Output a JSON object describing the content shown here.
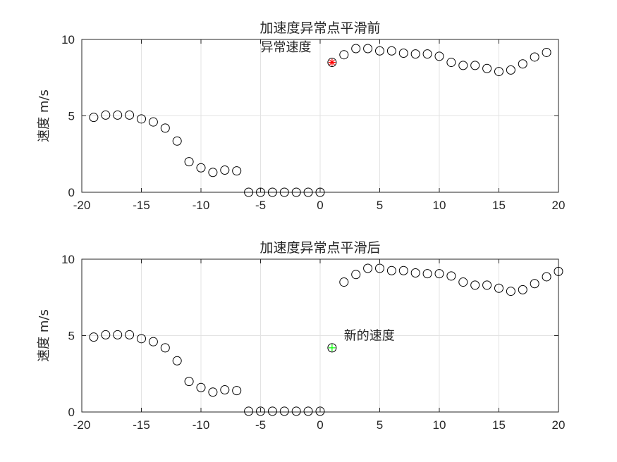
{
  "chart_data": [
    {
      "type": "scatter",
      "title": "加速度异常点平滑前",
      "xlabel": "",
      "ylabel": "速度  m/s",
      "xlim": [
        -20,
        20
      ],
      "ylim": [
        0,
        10
      ],
      "xticks": [
        "-20",
        "-15",
        "-10",
        "-5",
        "0",
        "5",
        "10",
        "15",
        "20"
      ],
      "yticks": [
        "0",
        "5",
        "10"
      ],
      "grid": true,
      "series": [
        {
          "x": [
            -19,
            -18,
            -17,
            -16,
            -15,
            -14,
            -13,
            -12,
            -11,
            -10,
            -9,
            -8,
            -7,
            -6,
            -5,
            -4,
            -3,
            -2,
            -1,
            0,
            1,
            2,
            3,
            4,
            5,
            6,
            7,
            8,
            9,
            10,
            11,
            12,
            13,
            14,
            15,
            16,
            17,
            18,
            19
          ],
          "y": [
            4.9,
            5.05,
            5.05,
            5.05,
            4.8,
            4.6,
            4.2,
            3.35,
            2.0,
            1.6,
            1.3,
            1.45,
            1.4,
            0.0,
            0.0,
            0.0,
            0.0,
            0.0,
            0.0,
            0.0,
            8.5,
            9.0,
            9.4,
            9.4,
            9.25,
            9.25,
            9.1,
            9.05,
            9.05,
            8.9,
            8.5,
            8.3,
            8.3,
            8.1,
            7.9,
            8.0,
            8.4,
            8.85,
            9.15
          ]
        }
      ],
      "highlight": {
        "x": 1,
        "y": 8.5,
        "color": "#ff0000",
        "marker": "*"
      },
      "annotation": {
        "text": "异常速度",
        "x": -5,
        "y": 9.5
      }
    },
    {
      "type": "scatter",
      "title": "加速度异常点平滑后",
      "xlabel": "",
      "ylabel": "速度  m/s",
      "xlim": [
        -20,
        20
      ],
      "ylim": [
        0,
        10
      ],
      "xticks": [
        "-20",
        "-15",
        "-10",
        "-5",
        "0",
        "5",
        "10",
        "15",
        "20"
      ],
      "yticks": [
        "0",
        "5",
        "10"
      ],
      "grid": true,
      "series": [
        {
          "x": [
            -19,
            -18,
            -17,
            -16,
            -15,
            -14,
            -13,
            -12,
            -11,
            -10,
            -9,
            -8,
            -7,
            -6,
            -5,
            -4,
            -3,
            -2,
            -1,
            0,
            1,
            2,
            3,
            4,
            5,
            6,
            7,
            8,
            9,
            10,
            11,
            12,
            13,
            14,
            15,
            16,
            17,
            18,
            19,
            20
          ],
          "y": [
            4.9,
            5.05,
            5.05,
            5.05,
            4.8,
            4.6,
            4.2,
            3.35,
            2.0,
            1.6,
            1.3,
            1.45,
            1.4,
            0.05,
            0.05,
            0.05,
            0.05,
            0.05,
            0.05,
            0.05,
            4.2,
            8.5,
            9.0,
            9.4,
            9.4,
            9.25,
            9.25,
            9.1,
            9.05,
            9.05,
            8.9,
            8.5,
            8.3,
            8.3,
            8.1,
            7.9,
            8.0,
            8.4,
            8.85,
            9.2
          ]
        }
      ],
      "highlight": {
        "x": 1,
        "y": 4.2,
        "color": "#00ff00",
        "marker": "+"
      },
      "annotation": {
        "text": "新的速度",
        "x": 2,
        "y": 5.0
      }
    }
  ]
}
